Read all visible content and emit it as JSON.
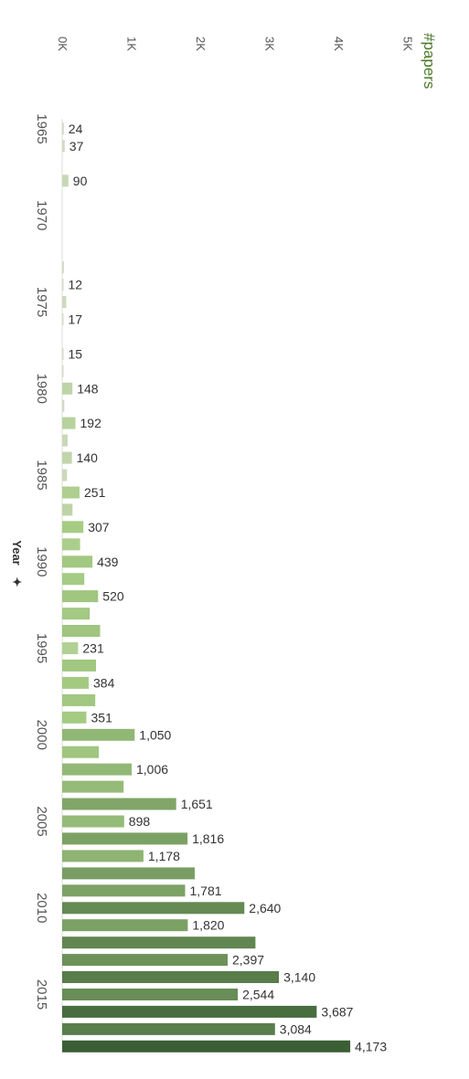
{
  "chart_data": {
    "type": "bar",
    "orientation": "horizontal",
    "measure_label": "#papers",
    "dimension_label": "Year",
    "xlim": [
      0,
      5000
    ],
    "ticks": [
      {
        "v": 0,
        "label": "0K"
      },
      {
        "v": 1000,
        "label": "1K"
      },
      {
        "v": 2000,
        "label": "2K"
      },
      {
        "v": 3000,
        "label": "3K"
      },
      {
        "v": 4000,
        "label": "4K"
      },
      {
        "v": 5000,
        "label": "5K"
      }
    ],
    "year_labels": [
      "1965",
      "1970",
      "1975",
      "1980",
      "1985",
      "1990",
      "1995",
      "2000",
      "2005",
      "2010",
      "2015"
    ],
    "grid": false,
    "bars": [
      {
        "year": 1965,
        "value": 24,
        "label": "24"
      },
      {
        "year": 1966,
        "value": 37,
        "label": "37"
      },
      {
        "year": 1968,
        "value": 90,
        "label": "90"
      },
      {
        "year": 1973,
        "value": 25,
        "label": ""
      },
      {
        "year": 1974,
        "value": 12,
        "label": "12"
      },
      {
        "year": 1975,
        "value": 60,
        "label": ""
      },
      {
        "year": 1976,
        "value": 17,
        "label": "17"
      },
      {
        "year": 1978,
        "value": 15,
        "label": "15"
      },
      {
        "year": 1979,
        "value": 20,
        "label": ""
      },
      {
        "year": 1980,
        "value": 148,
        "label": "148"
      },
      {
        "year": 1981,
        "value": 30,
        "label": ""
      },
      {
        "year": 1982,
        "value": 192,
        "label": "192"
      },
      {
        "year": 1983,
        "value": 80,
        "label": ""
      },
      {
        "year": 1984,
        "value": 140,
        "label": "140"
      },
      {
        "year": 1985,
        "value": 70,
        "label": ""
      },
      {
        "year": 1986,
        "value": 251,
        "label": "251"
      },
      {
        "year": 1987,
        "value": 150,
        "label": ""
      },
      {
        "year": 1988,
        "value": 307,
        "label": "307"
      },
      {
        "year": 1989,
        "value": 260,
        "label": ""
      },
      {
        "year": 1990,
        "value": 439,
        "label": "439"
      },
      {
        "year": 1991,
        "value": 320,
        "label": ""
      },
      {
        "year": 1992,
        "value": 520,
        "label": "520"
      },
      {
        "year": 1993,
        "value": 400,
        "label": ""
      },
      {
        "year": 1994,
        "value": 550,
        "label": ""
      },
      {
        "year": 1995,
        "value": 231,
        "label": "231"
      },
      {
        "year": 1996,
        "value": 490,
        "label": ""
      },
      {
        "year": 1997,
        "value": 384,
        "label": "384"
      },
      {
        "year": 1998,
        "value": 480,
        "label": ""
      },
      {
        "year": 1999,
        "value": 351,
        "label": "351"
      },
      {
        "year": 2000,
        "value": 1050,
        "label": "1,050"
      },
      {
        "year": 2001,
        "value": 530,
        "label": ""
      },
      {
        "year": 2002,
        "value": 1006,
        "label": "1,006"
      },
      {
        "year": 2003,
        "value": 890,
        "label": ""
      },
      {
        "year": 2004,
        "value": 1651,
        "label": "1,651"
      },
      {
        "year": 2005,
        "value": 898,
        "label": "898"
      },
      {
        "year": 2006,
        "value": 1816,
        "label": "1,816"
      },
      {
        "year": 2007,
        "value": 1178,
        "label": "1,178"
      },
      {
        "year": 2008,
        "value": 1920,
        "label": ""
      },
      {
        "year": 2009,
        "value": 1781,
        "label": "1,781"
      },
      {
        "year": 2010,
        "value": 2640,
        "label": "2,640"
      },
      {
        "year": 2011,
        "value": 1820,
        "label": "1,820"
      },
      {
        "year": 2012,
        "value": 2800,
        "label": ""
      },
      {
        "year": 2013,
        "value": 2397,
        "label": "2,397"
      },
      {
        "year": 2014,
        "value": 3140,
        "label": "3,140"
      },
      {
        "year": 2015,
        "value": 2544,
        "label": "2,544"
      },
      {
        "year": 2016,
        "value": 3687,
        "label": "3,687"
      },
      {
        "year": 2017,
        "value": 3084,
        "label": "3,084"
      },
      {
        "year": 2018,
        "value": 4173,
        "label": "4,173"
      }
    ],
    "colors": {
      "light": "#d6dccb",
      "mid": "#a6cc84",
      "dark": "#3b5f35",
      "measure_label": "#4a7a2a",
      "axis_text": "#555555",
      "value_text": "#333333"
    }
  }
}
